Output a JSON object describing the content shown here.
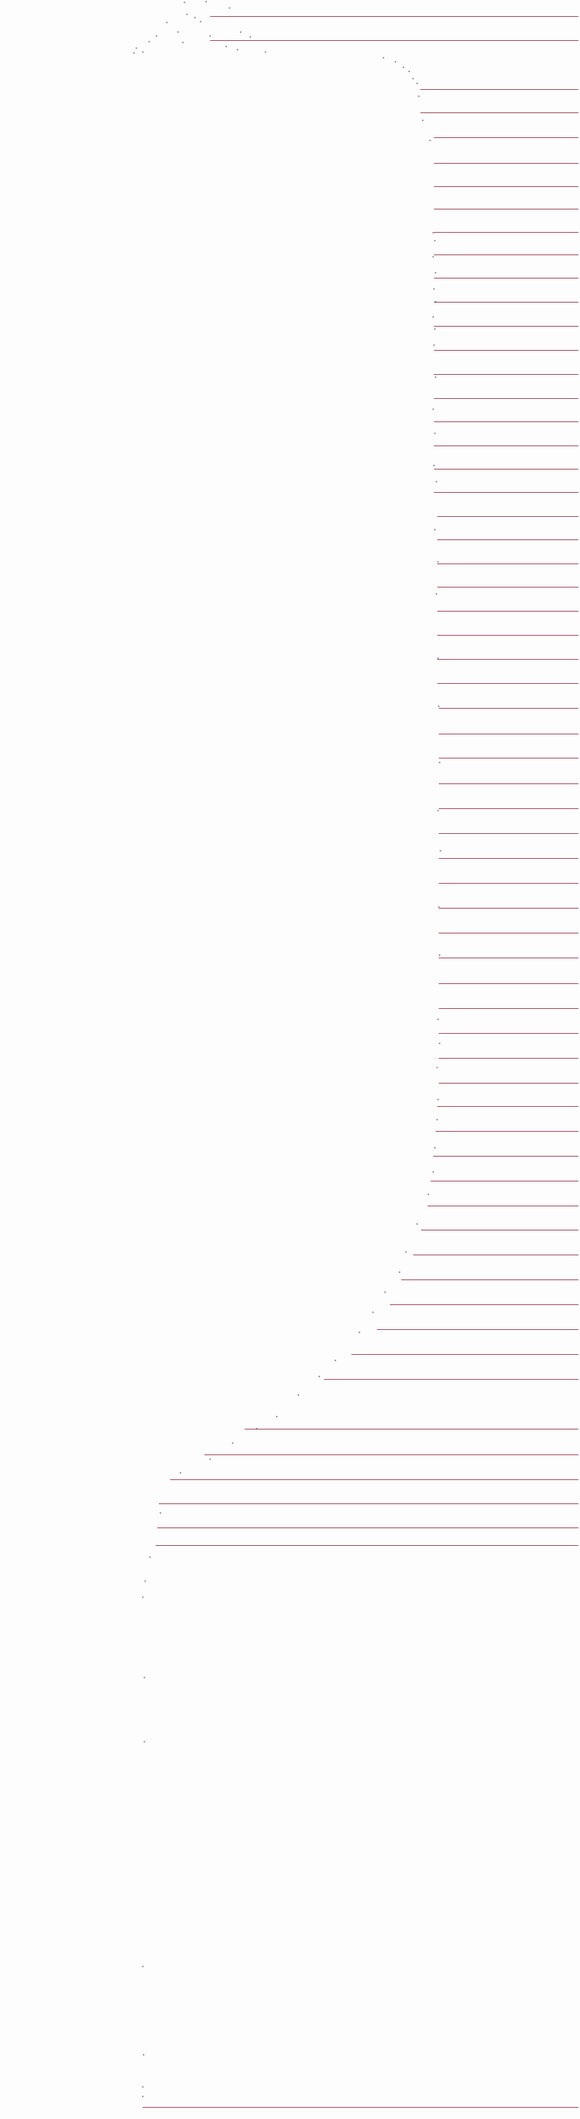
{
  "colors": {
    "background": "#fdfdfd",
    "rule": "#a85a6a",
    "dot": "#2a2a3a"
  }
}
